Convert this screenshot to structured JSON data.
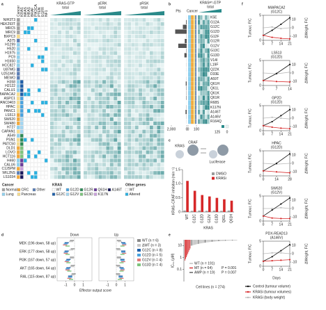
{
  "a": {
    "label": "a",
    "genes": [
      "Cancer",
      "KRAS",
      "NRAS",
      "HRAS",
      "BRAF",
      "PIK3CA",
      "PTEN",
      "EGFR",
      "NF1"
    ],
    "groups": [
      {
        "title": "KRAS-GTP",
        "sub": "total"
      },
      {
        "title": "pERK",
        "sub": "total"
      },
      {
        "title": "pRSK",
        "sub": "total"
      }
    ],
    "rows": [
      {
        "name": "NIH3T3",
        "cancer": "Normal",
        "kras": "WT"
      },
      {
        "name": "HEK293T",
        "cancer": "Normal",
        "kras": "WT"
      },
      {
        "name": "MRC5",
        "cancer": "Normal",
        "kras": "WT"
      },
      {
        "name": "MRC9",
        "cancer": "Normal",
        "kras": "WT"
      },
      {
        "name": "BXPC3",
        "cancer": "Pancreas",
        "kras": "WT"
      },
      {
        "name": "A375",
        "cancer": "Other",
        "kras": "WT"
      },
      {
        "name": "H1299",
        "cancer": "Lung",
        "kras": "WT"
      },
      {
        "name": "H520",
        "cancer": "Lung",
        "kras": "WT"
      },
      {
        "name": "H1975",
        "cancer": "Lung",
        "kras": "WT"
      },
      {
        "name": "PC9",
        "cancer": "Lung",
        "kras": "WT"
      },
      {
        "name": "H1650",
        "cancer": "Lung",
        "kras": "WT"
      },
      {
        "name": "HCC827",
        "cancer": "Lung",
        "kras": "WT"
      },
      {
        "name": "U87MG",
        "cancer": "Other",
        "kras": "WT"
      },
      {
        "name": "U251MG",
        "cancer": "Other",
        "kras": "WT"
      },
      {
        "name": "MEWO",
        "cancer": "Other",
        "kras": "WT"
      },
      {
        "name": "H358",
        "cancer": "Lung",
        "kras": "G12C"
      },
      {
        "name": "H2122",
        "cancer": "Lung",
        "kras": "G12C"
      },
      {
        "name": "CALU1",
        "cancer": "Lung",
        "kras": "G12C"
      },
      {
        "name": "MIAPACA2",
        "cancer": "Pancreas",
        "kras": "G12C"
      },
      {
        "name": "ASPC1",
        "cancer": "Pancreas",
        "kras": "G12D"
      },
      {
        "name": "PANC0403",
        "cancer": "Pancreas",
        "kras": "G12D"
      },
      {
        "name": "HPAC",
        "cancer": "Pancreas",
        "kras": "G12D"
      },
      {
        "name": "PANC1",
        "cancer": "Pancreas",
        "kras": "G12D"
      },
      {
        "name": "LS513",
        "cancer": "CRC",
        "kras": "G12D"
      },
      {
        "name": "SW620",
        "cancer": "CRC",
        "kras": "G12V"
      },
      {
        "name": "SW480",
        "cancer": "CRC",
        "kras": "G12V"
      },
      {
        "name": "H727",
        "cancer": "Lung",
        "kras": "G12V"
      },
      {
        "name": "CAPAN1",
        "cancer": "Pancreas",
        "kras": "G12V"
      },
      {
        "name": "A549",
        "cancer": "Lung",
        "kras": "G12R"
      },
      {
        "name": "PSN1",
        "cancer": "Pancreas",
        "kras": "G12R"
      },
      {
        "name": "PATC50",
        "cancer": "Pancreas",
        "kras": "G12R"
      },
      {
        "name": "DLD1",
        "cancer": "CRC",
        "kras": "G13D"
      },
      {
        "name": "LOVO",
        "cancer": "CRC",
        "kras": "G13D"
      },
      {
        "name": "HCT116",
        "cancer": "CRC",
        "kras": "G13D"
      },
      {
        "name": "H460",
        "cancer": "Lung",
        "kras": "Q61H"
      },
      {
        "name": "CALU6",
        "cancer": "Lung",
        "kras": "Q61H"
      },
      {
        "name": "C125PM",
        "cancer": "CRC",
        "kras": "K117N"
      },
      {
        "name": "WIL2NS",
        "cancer": "Other",
        "kras": "A146T"
      },
      {
        "name": "LS1034",
        "cancer": "CRC",
        "kras": "A146T"
      }
    ],
    "legend": {
      "cancer_title": "Cancer",
      "cancer": [
        {
          "name": "Normal",
          "color": "#a3a3a3"
        },
        {
          "name": "Lung",
          "color": "#8fd0ee"
        },
        {
          "name": "CRC",
          "color": "#f2a93b"
        },
        {
          "name": "Pancreas",
          "color": "#f6dc8c"
        },
        {
          "name": "Other",
          "color": "#5b7fb6"
        }
      ],
      "kras_title": "KRAS",
      "kras": [
        {
          "name": "WT",
          "color": "#ffffff"
        },
        {
          "name": "G12C",
          "color": "#1f5fa8"
        },
        {
          "name": "G12D",
          "color": "#4aa3df"
        },
        {
          "name": "G12V",
          "color": "#a4d6f1"
        },
        {
          "name": "G12R",
          "color": "#2e8b57"
        },
        {
          "name": "G13D",
          "color": "#7cc47c"
        },
        {
          "name": "Q61H",
          "color": "#6a3d9a"
        },
        {
          "name": "K117N",
          "color": "#c9a0dc"
        },
        {
          "name": "A146T",
          "color": "#1a1a5e"
        }
      ],
      "other_title": "Other genes",
      "other": [
        {
          "name": "WT",
          "color": "#ffffff"
        },
        {
          "name": "Altered",
          "color": "#2ab0e0"
        }
      ]
    }
  },
  "b": {
    "label": "b",
    "pts_title": "Pts",
    "cancer_title": "Cancer",
    "gtp_title": "KRASᴹᵀ-GTP",
    "gtp_sub": "total",
    "mutations": [
      "K5E",
      "G12A",
      "G12C",
      "G12D",
      "G12F",
      "G12R",
      "G12V",
      "G13C",
      "G13D",
      "V14I",
      "L19F",
      "Q22K",
      "D33E",
      "A59T",
      "Q61H",
      "Q61L",
      "Q61K",
      "Q61R",
      "R68S",
      "K117N",
      "A146T",
      "A146V",
      "R164Q"
    ],
    "pts": [
      5,
      80,
      500,
      1500,
      20,
      250,
      1100,
      40,
      300,
      10,
      15,
      10,
      5,
      15,
      120,
      40,
      30,
      50,
      5,
      25,
      150,
      20,
      10
    ],
    "pts_xlim": [
      2000,
      0
    ],
    "pts_xticks": [
      {
        "value": 2000,
        "label": "2,000"
      },
      0
    ],
    "cancer_xticks": [
      0,
      100
    ],
    "gtp_scale": [
      125,
      0
    ]
  },
  "c": {
    "label": "c",
    "schematic": [
      "KRAS",
      "CRAF",
      "Luciferase"
    ],
    "ylabel": "KRAS–CRAF inhibition (min⁻¹)",
    "xlabel": "KRAS",
    "categories": [
      "WT",
      "G12C",
      "G12D",
      "G12V",
      "G13D",
      "Q61L",
      "Q61H"
    ],
    "series": [
      {
        "name": "DMSO",
        "color": "#9a9a9a",
        "values": [
          0.05,
          0.04,
          0.05,
          0.04,
          0.05,
          0.04,
          0.05
        ]
      },
      {
        "name": "KRASi",
        "color": "#d62728",
        "values": [
          1.1,
          0.75,
          0.6,
          0.55,
          0.5,
          0.45,
          0.4
        ]
      }
    ],
    "ylim": [
      0,
      1.5
    ],
    "yticks": [
      0,
      0.5,
      {
        "value": 1,
        "label": "1.0"
      },
      1.5
    ]
  },
  "d": {
    "label": "d",
    "titles": [
      "Down",
      "Up"
    ],
    "rows": [
      "MEK (196 down, 58 up)",
      "ERK (177 down, 58 up)",
      "PI3K (167 down, 57 up)",
      "AKT (165 down, 64 up)",
      "RAL (115 down, 87 up)"
    ],
    "xlabel": "Effector output score",
    "xlim": [
      -2,
      2
    ],
    "xticks": [
      -1,
      0,
      1
    ],
    "series": [
      {
        "name": "WT (n = 6)",
        "color": "#8a8a8a",
        "down": [
          -0.3,
          -0.2,
          -0.3,
          -0.2,
          -0.1
        ],
        "up": [
          0.3,
          0.2,
          0.3,
          0.2,
          0.2
        ]
      },
      {
        "name": "ΔWT (n = 3)",
        "color": "#c8c8c8",
        "down": [
          -0.4,
          -0.4,
          -0.3,
          -0.3,
          -0.2
        ],
        "up": [
          0.4,
          0.3,
          0.3,
          0.3,
          0.2
        ]
      },
      {
        "name": "G12C (n = 8)",
        "color": "#1f5fa8",
        "down": [
          -0.9,
          -0.9,
          -0.7,
          -0.7,
          -0.5
        ],
        "up": [
          0.8,
          0.8,
          0.7,
          0.6,
          0.5
        ]
      },
      {
        "name": "G12D (n = 5)",
        "color": "#4aa3df",
        "down": [
          -1,
          -1,
          -0.8,
          -0.8,
          -0.5
        ],
        "up": [
          0.9,
          0.8,
          0.7,
          0.7,
          0.5
        ]
      },
      {
        "name": "G12V (n = 4)",
        "color": "#e07a7a",
        "down": [
          -1.1,
          -1,
          -0.9,
          -0.8,
          -0.6
        ],
        "up": [
          0.9,
          0.9,
          0.8,
          0.7,
          0.6
        ]
      },
      {
        "name": "G13D (n = 4)",
        "color": "#7cc47c",
        "down": [
          -0.8,
          -0.8,
          -0.7,
          -0.6,
          -0.4
        ],
        "up": [
          0.7,
          0.7,
          0.6,
          0.6,
          0.4
        ]
      }
    ]
  },
  "e": {
    "label": "e",
    "ylabel": "IC₅₀ (μM)",
    "xlabel": "Cell lines (n = 274)",
    "log": true,
    "ylim": [
      0.01,
      30
    ],
    "yticks": [
      0.1,
      1,
      10
    ],
    "legend": [
      {
        "name": "WT (n = 191)",
        "color": "#bdbdbd"
      },
      {
        "name": "MT (n = 64)",
        "color": "#d62728"
      },
      {
        "name": "AMP (n = 19)",
        "color": "#555555"
      }
    ],
    "pvalues": [
      "P = 0.001",
      "P = 0.007"
    ]
  },
  "f": {
    "label": "f",
    "ylabel": "Tumour, F/C",
    "y2label": "ΔWeight, F/C",
    "xlabel": "Days",
    "ylim": [
      0,
      5
    ],
    "yticks": [
      0,
      5
    ],
    "y2lim": [
      -15,
      15
    ],
    "y2ticks": [
      -10,
      0,
      10
    ],
    "legend": [
      {
        "name": "Control (tumour volume)",
        "color": "#111111"
      },
      {
        "name": "KRASi (tumour volumes)",
        "color": "#d62728"
      },
      {
        "name": "KRASi (body weight)",
        "color": "#bbbbbb"
      }
    ],
    "panels": [
      {
        "title": "MIAPACA2",
        "sub": "(G12C)",
        "days": [
          0,
          7,
          14,
          21
        ],
        "xticks": [
          0,
          7,
          14,
          21
        ],
        "control": [
          1,
          2,
          3.2,
          4.5
        ],
        "krasi": [
          1,
          0.6,
          0.4,
          0.3
        ],
        "weight": [
          0,
          1,
          -1,
          0
        ]
      },
      {
        "title": "LS513",
        "sub": "(G12D)",
        "days": [
          0,
          7,
          14
        ],
        "xticks": [
          0,
          7,
          14
        ],
        "control": [
          1,
          2.4,
          4.2
        ],
        "krasi": [
          1,
          0.8,
          0.7
        ],
        "weight": [
          0,
          -1,
          1
        ]
      },
      {
        "title": "GP2D",
        "sub": "(G12D)",
        "days": [
          0,
          7,
          14,
          21
        ],
        "xticks": [
          0,
          7,
          14,
          21
        ],
        "control": [
          1,
          1.8,
          3,
          4.2
        ],
        "krasi": [
          1,
          0.7,
          0.5,
          0.4
        ],
        "weight": [
          0,
          1,
          0,
          -1
        ]
      },
      {
        "title": "HPAC",
        "sub": "(G12D)",
        "days": [
          0,
          14,
          28
        ],
        "xticks": [
          0,
          14,
          28
        ],
        "control": [
          1,
          2.5,
          4.4
        ],
        "krasi": [
          1,
          0.8,
          0.6
        ],
        "weight": [
          0,
          -1,
          0
        ]
      },
      {
        "title": "SW620",
        "sub": "(G12V)",
        "days": [
          0,
          7,
          14,
          21
        ],
        "xticks": [
          0,
          7,
          14,
          21
        ],
        "control": [
          1,
          2.2,
          3.4,
          4.6
        ],
        "krasi": [
          1,
          0.6,
          0.5,
          0.5
        ],
        "weight": [
          0,
          0,
          1,
          0
        ]
      },
      {
        "title": "PDX-READ13",
        "sub": "(A146V)",
        "days": [
          0,
          7,
          14,
          21
        ],
        "xticks": [
          0,
          7,
          14,
          21
        ],
        "control": [
          1,
          1.9,
          3.1,
          4.3
        ],
        "krasi": [
          1,
          1.1,
          1.2,
          1.3
        ],
        "weight": [
          0,
          1,
          1,
          0
        ]
      }
    ]
  }
}
